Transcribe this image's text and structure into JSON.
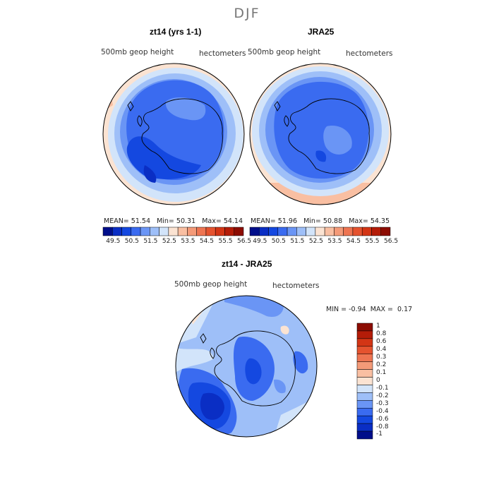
{
  "main_title": "DJF",
  "panels": [
    {
      "title": "zt14 (yrs 1-1)",
      "field_label": "500mb geop height",
      "units": "hectometers",
      "stats": {
        "mean_label": "MEAN=",
        "mean": "51.54",
        "min_label": "Min=",
        "min": "50.31",
        "max_label": "Max=",
        "max": "54.14"
      }
    },
    {
      "title": "JRA25",
      "field_label": "500mb geop height",
      "units": "hectometers",
      "stats": {
        "mean_label": "MEAN=",
        "mean": "51.96",
        "min_label": "Min=",
        "min": "50.88",
        "max_label": "Max=",
        "max": "54.35"
      }
    },
    {
      "title": "zt14 - JRA25",
      "field_label": "500mb geop height",
      "units": "hectometers",
      "stats": {
        "min_label": "MIN =",
        "min": "-0.94",
        "max_label": "MAX =",
        "max": "0.17"
      }
    }
  ],
  "colorbar_top": {
    "labels": [
      "49.5",
      "50.5",
      "51.5",
      "52.5",
      "53.5",
      "54.5",
      "55.5",
      "56.5"
    ],
    "colors": [
      "#000e8a",
      "#0a2ec4",
      "#1448e0",
      "#3a6bf0",
      "#6a95f5",
      "#9ebff8",
      "#d2e4fa",
      "#fbe3d2",
      "#f9bfa2",
      "#f49a78",
      "#ee7552",
      "#e5532f",
      "#d33515",
      "#b41c08",
      "#8c0c02"
    ]
  },
  "colorbar_diff": {
    "labels": [
      "1",
      "0.8",
      "0.6",
      "0.4",
      "0.3",
      "0.2",
      "0.1",
      "0",
      "-0.1",
      "-0.2",
      "-0.3",
      "-0.4",
      "-0.6",
      "-0.8",
      "-1"
    ],
    "colors": [
      "#8c0c02",
      "#b41c08",
      "#d33515",
      "#e5532f",
      "#ee7552",
      "#f49a78",
      "#f9bfa2",
      "#fbe3d2",
      "#d2e4fa",
      "#9ebff8",
      "#6a95f5",
      "#3a6bf0",
      "#1448e0",
      "#0a2ec4",
      "#000e8a"
    ]
  },
  "icons": [
    "antarctica-coastline"
  ]
}
